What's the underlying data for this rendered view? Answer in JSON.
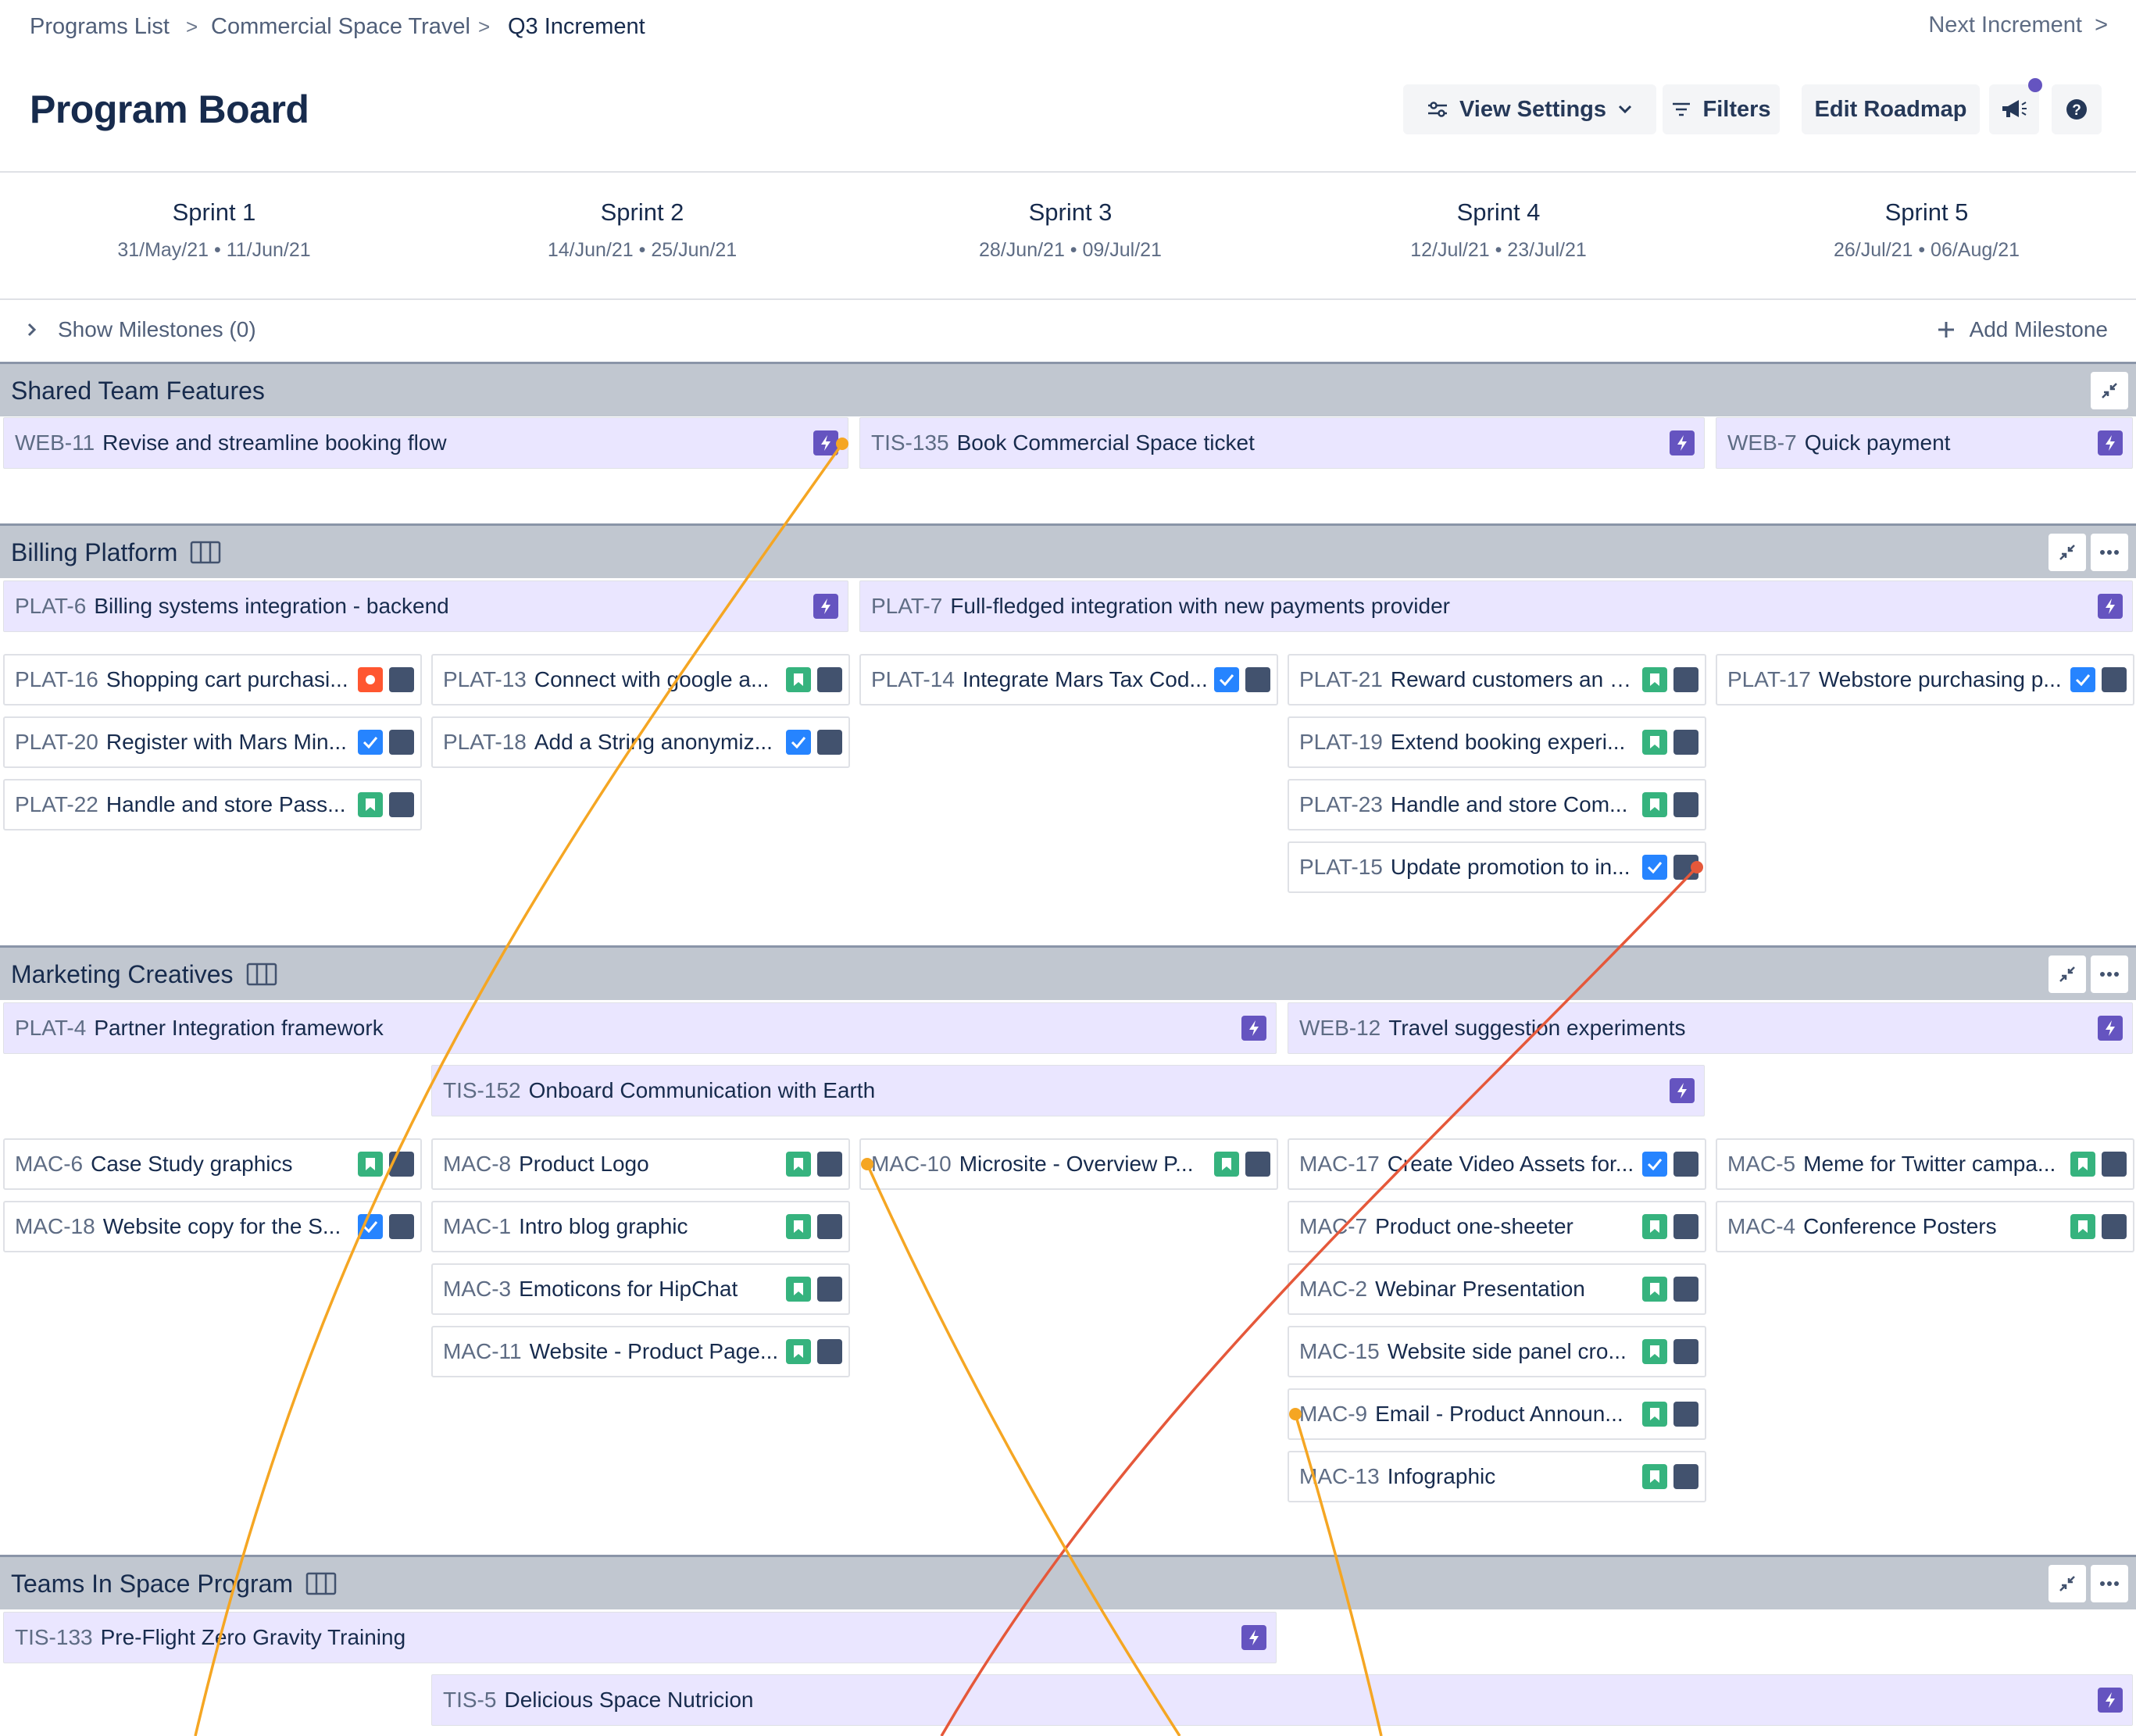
{
  "breadcrumb": [
    "Programs List",
    "Commercial Space Travel",
    "Q3 Increment"
  ],
  "next_increment": "Next Increment",
  "page_title": "Program Board",
  "toolbar": {
    "view_settings": "View Settings",
    "filters": "Filters",
    "edit_roadmap": "Edit Roadmap",
    "announcements_icon": "megaphone-icon",
    "help_icon": "help-icon"
  },
  "sprints": [
    {
      "name": "Sprint 1",
      "dates": "31/May/21 • 11/Jun/21"
    },
    {
      "name": "Sprint 2",
      "dates": "14/Jun/21 • 25/Jun/21"
    },
    {
      "name": "Sprint 3",
      "dates": "28/Jun/21 • 09/Jul/21"
    },
    {
      "name": "Sprint 4",
      "dates": "12/Jul/21 • 23/Jul/21"
    },
    {
      "name": "Sprint 5",
      "dates": "26/Jul/21 • 06/Aug/21"
    }
  ],
  "milestones": {
    "show_label": "Show Milestones (0)",
    "add_label": "Add Milestone"
  },
  "teams": {
    "shared": {
      "name": "Shared Team Features",
      "features": [
        {
          "key": "WEB-11",
          "title": "Revise and streamline booking flow"
        },
        {
          "key": "TIS-135",
          "title": "Book Commercial Space ticket"
        },
        {
          "key": "WEB-7",
          "title": "Quick payment"
        }
      ]
    },
    "billing": {
      "name": "Billing Platform",
      "features": [
        {
          "key": "PLAT-6",
          "title": "Billing systems integration - backend"
        },
        {
          "key": "PLAT-7",
          "title": "Full-fledged integration with new payments provider"
        }
      ],
      "issues": [
        {
          "key": "PLAT-16",
          "title": "Shopping cart purchasi...",
          "type": "bug"
        },
        {
          "key": "PLAT-20",
          "title": "Register with Mars Min...",
          "type": "task"
        },
        {
          "key": "PLAT-22",
          "title": "Handle and store Pass...",
          "type": "story"
        },
        {
          "key": "PLAT-13",
          "title": "Connect with google a...",
          "type": "story"
        },
        {
          "key": "PLAT-18",
          "title": "Add a String anonymiz...",
          "type": "task"
        },
        {
          "key": "PLAT-14",
          "title": "Integrate Mars Tax Cod...",
          "type": "task"
        },
        {
          "key": "PLAT-21",
          "title": "Reward customers an e...",
          "type": "story"
        },
        {
          "key": "PLAT-19",
          "title": "Extend booking experi...",
          "type": "story"
        },
        {
          "key": "PLAT-23",
          "title": "Handle and store Com...",
          "type": "story"
        },
        {
          "key": "PLAT-15",
          "title": "Update promotion to in...",
          "type": "task"
        },
        {
          "key": "PLAT-17",
          "title": "Webstore purchasing p...",
          "type": "task"
        }
      ]
    },
    "marketing": {
      "name": "Marketing Creatives",
      "features": [
        {
          "key": "PLAT-4",
          "title": "Partner Integration framework"
        },
        {
          "key": "WEB-12",
          "title": "Travel suggestion experiments"
        },
        {
          "key": "TIS-152",
          "title": "Onboard Communication with Earth"
        }
      ],
      "issues": [
        {
          "key": "MAC-6",
          "title": "Case Study graphics",
          "type": "story"
        },
        {
          "key": "MAC-18",
          "title": "Website copy for the S...",
          "type": "task"
        },
        {
          "key": "MAC-8",
          "title": "Product Logo",
          "type": "story"
        },
        {
          "key": "MAC-1",
          "title": "Intro blog graphic",
          "type": "story"
        },
        {
          "key": "MAC-3",
          "title": "Emoticons for HipChat",
          "type": "story"
        },
        {
          "key": "MAC-11",
          "title": "Website - Product Page...",
          "type": "story"
        },
        {
          "key": "MAC-10",
          "title": "Microsite - Overview P...",
          "type": "story"
        },
        {
          "key": "MAC-17",
          "title": "Create Video Assets for...",
          "type": "task"
        },
        {
          "key": "MAC-7",
          "title": "Product one-sheeter",
          "type": "story"
        },
        {
          "key": "MAC-2",
          "title": "Webinar Presentation",
          "type": "story"
        },
        {
          "key": "MAC-15",
          "title": "Website side panel cro...",
          "type": "story"
        },
        {
          "key": "MAC-9",
          "title": "Email - Product Announ...",
          "type": "story"
        },
        {
          "key": "MAC-13",
          "title": "Infographic",
          "type": "story"
        },
        {
          "key": "MAC-5",
          "title": "Meme for Twitter campa...",
          "type": "story"
        },
        {
          "key": "MAC-4",
          "title": "Conference Posters",
          "type": "story"
        }
      ]
    },
    "teams_in_space": {
      "name": "Teams In Space Program",
      "features": [
        {
          "key": "TIS-133",
          "title": "Pre-Flight Zero Gravity Training"
        },
        {
          "key": "TIS-5",
          "title": "Delicious Space Nutricion"
        }
      ]
    }
  },
  "colors": {
    "epic": "#6554c0",
    "story": "#36b37e",
    "task": "#2684ff",
    "bug": "#ff5630",
    "team_header": "#c1c7d0",
    "feature_bg": "#eae6ff",
    "dependency_orange": "#f5a623",
    "dependency_red": "#e5583a"
  }
}
